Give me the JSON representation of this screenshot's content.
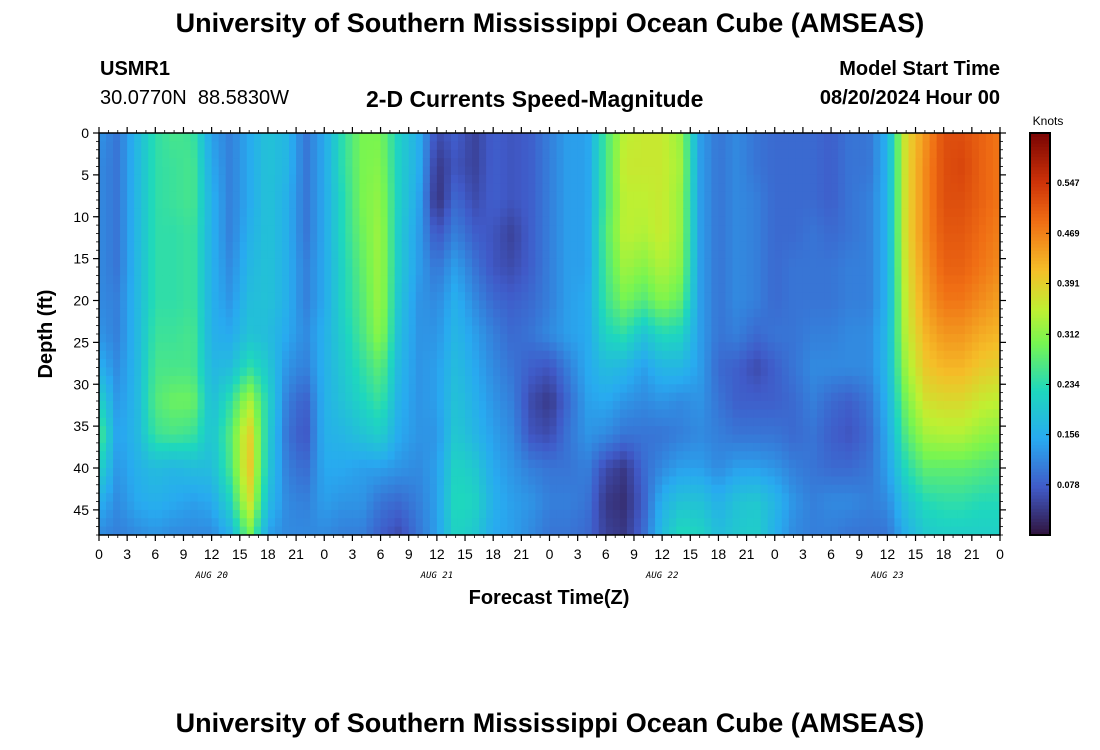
{
  "header": {
    "title": "University of Southern Mississippi Ocean Cube (AMSEAS)",
    "station_id": "USMR1",
    "coordinates": "30.0770N  88.5830W",
    "subtitle": "2-D Currents Speed-Magnitude",
    "model_start_label": "Model Start Time",
    "model_start_value": "08/20/2024 Hour 00"
  },
  "footer": {
    "title": "University of Southern Mississippi Ocean Cube (AMSEAS)"
  },
  "chart_data": {
    "type": "heatmap",
    "xlabel": "Forecast Time(Z)",
    "ylabel": "Depth (ft)",
    "colorbar_label": "Knots",
    "colorbar_ticks": [
      "0.547",
      "0.469",
      "0.391",
      "0.312",
      "0.234",
      "0.156",
      "0.078"
    ],
    "colorbar_values": [
      0.547,
      0.469,
      0.391,
      0.312,
      0.234,
      0.156,
      0.078
    ],
    "colorbar_range": [
      0.0,
      0.625
    ],
    "y_ticks": [
      "0",
      "5",
      "10",
      "15",
      "20",
      "25",
      "30",
      "35",
      "40",
      "45"
    ],
    "y_tick_values": [
      0,
      5,
      10,
      15,
      20,
      25,
      30,
      35,
      40,
      45
    ],
    "ylim": [
      0,
      48
    ],
    "x_ticks": [
      "0",
      "3",
      "6",
      "9",
      "12",
      "15",
      "18",
      "21",
      "0",
      "3",
      "6",
      "9",
      "12",
      "15",
      "18",
      "21",
      "0",
      "3",
      "6",
      "9",
      "12",
      "15",
      "18",
      "21",
      "0",
      "3",
      "6",
      "9",
      "12",
      "15",
      "18",
      "21",
      "0"
    ],
    "x_tick_hours": [
      0,
      3,
      6,
      9,
      12,
      15,
      18,
      21,
      24,
      27,
      30,
      33,
      36,
      39,
      42,
      45,
      48,
      51,
      54,
      57,
      60,
      63,
      66,
      69,
      72,
      75,
      78,
      81,
      84,
      87,
      90,
      93,
      96
    ],
    "xlim_hours": [
      0,
      96
    ],
    "date_labels": [
      {
        "label": "AUG 20",
        "hour": 12
      },
      {
        "label": "AUG 21",
        "hour": 36
      },
      {
        "label": "AUG 22",
        "hour": 60
      },
      {
        "label": "AUG 23",
        "hour": 84
      }
    ],
    "grid_hours": [
      0,
      2,
      4,
      6,
      8,
      10,
      12,
      14,
      16,
      18,
      20,
      22,
      24,
      26,
      28,
      30,
      32,
      34,
      36,
      38,
      40,
      42,
      44,
      46,
      48,
      50,
      52,
      54,
      56,
      58,
      60,
      62,
      64,
      66,
      68,
      70,
      72,
      74,
      76,
      78,
      80,
      82,
      84,
      86,
      88,
      90,
      92,
      94,
      96
    ],
    "grid_depths_ft": [
      0,
      4,
      8,
      12,
      16,
      20,
      24,
      28,
      32,
      36,
      40,
      44,
      48
    ],
    "speed_knots": [
      [
        0.13,
        0.1,
        0.17,
        0.24,
        0.26,
        0.25,
        0.14,
        0.11,
        0.15,
        0.19,
        0.17,
        0.1,
        0.15,
        0.24,
        0.3,
        0.3,
        0.21,
        0.16,
        0.06,
        0.08,
        0.05,
        0.08,
        0.07,
        0.08,
        0.11,
        0.14,
        0.14,
        0.26,
        0.35,
        0.36,
        0.36,
        0.32,
        0.14,
        0.1,
        0.12,
        0.1,
        0.09,
        0.09,
        0.09,
        0.08,
        0.1,
        0.1,
        0.16,
        0.38,
        0.45,
        0.52,
        0.52,
        0.5,
        0.48
      ],
      [
        0.12,
        0.1,
        0.17,
        0.24,
        0.25,
        0.26,
        0.15,
        0.11,
        0.15,
        0.19,
        0.17,
        0.1,
        0.15,
        0.24,
        0.3,
        0.31,
        0.21,
        0.16,
        0.04,
        0.07,
        0.05,
        0.08,
        0.07,
        0.08,
        0.11,
        0.14,
        0.14,
        0.26,
        0.36,
        0.36,
        0.36,
        0.33,
        0.14,
        0.1,
        0.12,
        0.1,
        0.09,
        0.09,
        0.09,
        0.08,
        0.1,
        0.1,
        0.16,
        0.38,
        0.46,
        0.52,
        0.53,
        0.5,
        0.48
      ],
      [
        0.12,
        0.1,
        0.17,
        0.24,
        0.25,
        0.26,
        0.16,
        0.11,
        0.15,
        0.19,
        0.16,
        0.1,
        0.15,
        0.23,
        0.3,
        0.32,
        0.21,
        0.15,
        0.03,
        0.09,
        0.06,
        0.08,
        0.07,
        0.08,
        0.11,
        0.14,
        0.14,
        0.26,
        0.35,
        0.35,
        0.36,
        0.32,
        0.14,
        0.1,
        0.12,
        0.11,
        0.09,
        0.09,
        0.09,
        0.08,
        0.1,
        0.11,
        0.16,
        0.38,
        0.46,
        0.52,
        0.52,
        0.5,
        0.48
      ],
      [
        0.12,
        0.1,
        0.17,
        0.24,
        0.24,
        0.25,
        0.16,
        0.11,
        0.16,
        0.19,
        0.16,
        0.1,
        0.15,
        0.23,
        0.29,
        0.33,
        0.2,
        0.14,
        0.07,
        0.11,
        0.08,
        0.07,
        0.05,
        0.08,
        0.11,
        0.14,
        0.14,
        0.27,
        0.35,
        0.34,
        0.36,
        0.32,
        0.14,
        0.1,
        0.12,
        0.11,
        0.09,
        0.09,
        0.1,
        0.09,
        0.1,
        0.11,
        0.16,
        0.38,
        0.46,
        0.51,
        0.51,
        0.49,
        0.47
      ],
      [
        0.12,
        0.1,
        0.17,
        0.24,
        0.24,
        0.25,
        0.16,
        0.12,
        0.17,
        0.19,
        0.16,
        0.11,
        0.15,
        0.22,
        0.28,
        0.33,
        0.2,
        0.14,
        0.1,
        0.14,
        0.1,
        0.07,
        0.06,
        0.08,
        0.11,
        0.14,
        0.14,
        0.26,
        0.33,
        0.31,
        0.34,
        0.31,
        0.14,
        0.1,
        0.12,
        0.11,
        0.09,
        0.1,
        0.1,
        0.1,
        0.11,
        0.11,
        0.16,
        0.37,
        0.45,
        0.5,
        0.5,
        0.48,
        0.46
      ],
      [
        0.12,
        0.11,
        0.17,
        0.24,
        0.24,
        0.25,
        0.16,
        0.13,
        0.18,
        0.19,
        0.16,
        0.11,
        0.15,
        0.22,
        0.27,
        0.33,
        0.19,
        0.13,
        0.12,
        0.16,
        0.12,
        0.09,
        0.08,
        0.09,
        0.11,
        0.14,
        0.15,
        0.25,
        0.3,
        0.27,
        0.31,
        0.28,
        0.14,
        0.1,
        0.12,
        0.11,
        0.09,
        0.1,
        0.1,
        0.1,
        0.11,
        0.11,
        0.16,
        0.36,
        0.44,
        0.48,
        0.48,
        0.46,
        0.44
      ],
      [
        0.13,
        0.11,
        0.17,
        0.25,
        0.25,
        0.26,
        0.16,
        0.15,
        0.19,
        0.18,
        0.15,
        0.12,
        0.16,
        0.21,
        0.26,
        0.32,
        0.18,
        0.13,
        0.13,
        0.17,
        0.14,
        0.11,
        0.09,
        0.1,
        0.12,
        0.14,
        0.15,
        0.22,
        0.24,
        0.19,
        0.23,
        0.22,
        0.14,
        0.1,
        0.11,
        0.09,
        0.1,
        0.1,
        0.11,
        0.11,
        0.12,
        0.12,
        0.17,
        0.35,
        0.42,
        0.45,
        0.45,
        0.43,
        0.42
      ],
      [
        0.16,
        0.12,
        0.17,
        0.26,
        0.26,
        0.26,
        0.17,
        0.18,
        0.24,
        0.2,
        0.13,
        0.11,
        0.16,
        0.2,
        0.24,
        0.28,
        0.17,
        0.13,
        0.14,
        0.18,
        0.15,
        0.12,
        0.1,
        0.08,
        0.07,
        0.11,
        0.15,
        0.18,
        0.17,
        0.14,
        0.17,
        0.17,
        0.14,
        0.09,
        0.08,
        0.06,
        0.08,
        0.1,
        0.12,
        0.12,
        0.12,
        0.12,
        0.17,
        0.33,
        0.4,
        0.42,
        0.42,
        0.4,
        0.39
      ],
      [
        0.22,
        0.13,
        0.17,
        0.27,
        0.29,
        0.29,
        0.18,
        0.24,
        0.34,
        0.22,
        0.11,
        0.08,
        0.16,
        0.19,
        0.22,
        0.25,
        0.16,
        0.13,
        0.14,
        0.19,
        0.16,
        0.13,
        0.11,
        0.06,
        0.04,
        0.09,
        0.14,
        0.15,
        0.13,
        0.12,
        0.13,
        0.12,
        0.13,
        0.1,
        0.08,
        0.08,
        0.08,
        0.09,
        0.11,
        0.09,
        0.08,
        0.1,
        0.16,
        0.3,
        0.37,
        0.38,
        0.38,
        0.36,
        0.35
      ],
      [
        0.27,
        0.14,
        0.17,
        0.25,
        0.26,
        0.25,
        0.19,
        0.27,
        0.4,
        0.21,
        0.1,
        0.07,
        0.16,
        0.17,
        0.19,
        0.21,
        0.15,
        0.13,
        0.13,
        0.2,
        0.17,
        0.14,
        0.12,
        0.07,
        0.06,
        0.1,
        0.13,
        0.12,
        0.1,
        0.1,
        0.1,
        0.11,
        0.12,
        0.11,
        0.1,
        0.1,
        0.1,
        0.09,
        0.1,
        0.08,
        0.07,
        0.09,
        0.15,
        0.27,
        0.33,
        0.34,
        0.34,
        0.32,
        0.31
      ],
      [
        0.22,
        0.13,
        0.16,
        0.18,
        0.17,
        0.18,
        0.18,
        0.26,
        0.41,
        0.2,
        0.11,
        0.09,
        0.15,
        0.15,
        0.14,
        0.14,
        0.13,
        0.12,
        0.14,
        0.22,
        0.2,
        0.15,
        0.13,
        0.11,
        0.1,
        0.1,
        0.11,
        0.06,
        0.04,
        0.09,
        0.12,
        0.14,
        0.14,
        0.12,
        0.14,
        0.14,
        0.13,
        0.11,
        0.1,
        0.09,
        0.09,
        0.1,
        0.14,
        0.23,
        0.28,
        0.28,
        0.28,
        0.27,
        0.26
      ],
      [
        0.16,
        0.12,
        0.15,
        0.16,
        0.15,
        0.14,
        0.15,
        0.22,
        0.38,
        0.18,
        0.12,
        0.11,
        0.14,
        0.13,
        0.13,
        0.1,
        0.09,
        0.11,
        0.14,
        0.23,
        0.22,
        0.16,
        0.14,
        0.13,
        0.11,
        0.11,
        0.1,
        0.04,
        0.03,
        0.08,
        0.16,
        0.19,
        0.19,
        0.16,
        0.19,
        0.2,
        0.17,
        0.13,
        0.11,
        0.12,
        0.12,
        0.11,
        0.12,
        0.19,
        0.23,
        0.24,
        0.24,
        0.23,
        0.23
      ],
      [
        0.12,
        0.11,
        0.12,
        0.13,
        0.12,
        0.12,
        0.12,
        0.16,
        0.3,
        0.14,
        0.12,
        0.12,
        0.12,
        0.11,
        0.11,
        0.08,
        0.06,
        0.1,
        0.14,
        0.22,
        0.2,
        0.15,
        0.14,
        0.12,
        0.1,
        0.1,
        0.09,
        0.05,
        0.04,
        0.09,
        0.18,
        0.23,
        0.22,
        0.18,
        0.2,
        0.21,
        0.16,
        0.12,
        0.11,
        0.11,
        0.1,
        0.1,
        0.1,
        0.16,
        0.2,
        0.21,
        0.21,
        0.21,
        0.21
      ]
    ]
  }
}
